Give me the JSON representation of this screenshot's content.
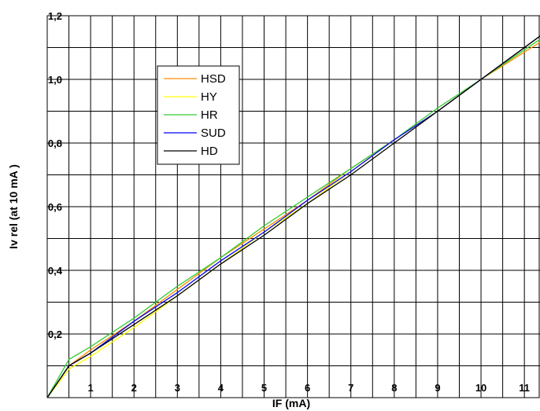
{
  "chart_data": {
    "type": "line",
    "title": "",
    "xlabel": "IF (mA)",
    "ylabel": "Iv rel (at 10 mA )",
    "xlim": [
      0,
      11
    ],
    "ylim": [
      0,
      1.2
    ],
    "x_ticks": [
      "1",
      "2",
      "3",
      "4",
      "5",
      "6",
      "7",
      "8",
      "9",
      "10",
      "11"
    ],
    "y_ticks": [
      "0,2",
      "0,4",
      "0,6",
      "0,8",
      "1,0",
      "1,2"
    ],
    "grid": true,
    "legend_position": "upper-left inside plot",
    "series": [
      {
        "name": "HSD",
        "color": "#ff8c00",
        "x": [
          0,
          0.5,
          1,
          2,
          3,
          4,
          5,
          6,
          7,
          8,
          9,
          10,
          11.4
        ],
        "y": [
          0,
          0.1,
          0.15,
          0.24,
          0.34,
          0.44,
          0.53,
          0.62,
          0.72,
          0.81,
          0.9,
          1.0,
          1.12
        ]
      },
      {
        "name": "HY",
        "color": "#ffff00",
        "x": [
          0,
          0.5,
          1,
          2,
          3,
          4,
          5,
          6,
          7,
          8,
          9,
          10,
          11.4
        ],
        "y": [
          0,
          0.09,
          0.13,
          0.22,
          0.32,
          0.42,
          0.52,
          0.61,
          0.71,
          0.81,
          0.9,
          1.0,
          1.13
        ]
      },
      {
        "name": "HR",
        "color": "#33cc33",
        "x": [
          0,
          0.5,
          1,
          2,
          3,
          4,
          5,
          6,
          7,
          8,
          9,
          10,
          11.4
        ],
        "y": [
          0,
          0.12,
          0.16,
          0.25,
          0.35,
          0.44,
          0.54,
          0.63,
          0.72,
          0.81,
          0.91,
          1.0,
          1.13
        ]
      },
      {
        "name": "SUD",
        "color": "#0000ff",
        "x": [
          0,
          0.5,
          1,
          2,
          3,
          4,
          5,
          6,
          7,
          8,
          9,
          10,
          11.4
        ],
        "y": [
          0,
          0.1,
          0.14,
          0.24,
          0.33,
          0.43,
          0.52,
          0.62,
          0.71,
          0.81,
          0.9,
          1.0,
          1.14
        ]
      },
      {
        "name": "HD",
        "color": "#000000",
        "x": [
          0,
          0.5,
          1,
          2,
          3,
          4,
          5,
          6,
          7,
          8,
          9,
          10,
          11.4
        ],
        "y": [
          0,
          0.1,
          0.14,
          0.23,
          0.32,
          0.42,
          0.51,
          0.61,
          0.7,
          0.8,
          0.9,
          1.0,
          1.14
        ]
      }
    ]
  }
}
